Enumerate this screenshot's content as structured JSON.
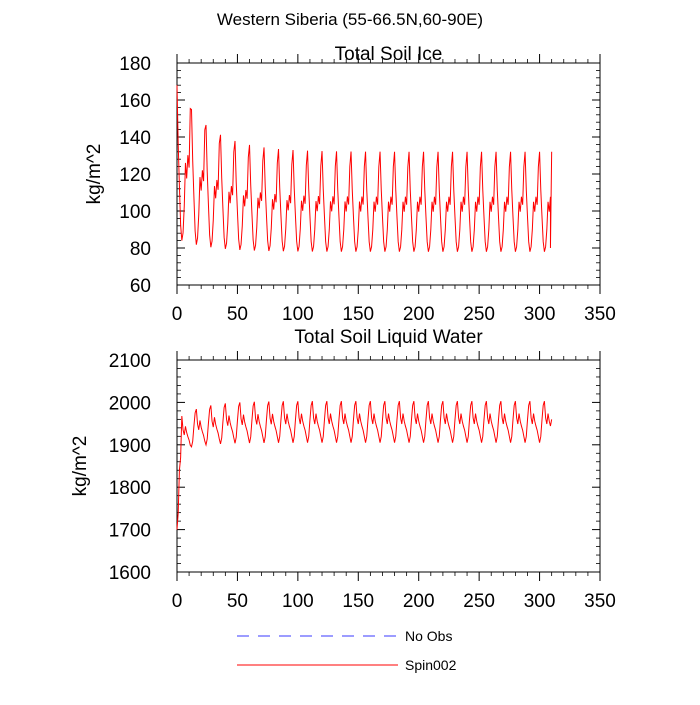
{
  "figure_title": "Western Siberia (55-66.5N,60-90E)",
  "legend": {
    "entries": [
      {
        "label": "No Obs",
        "color": "#3a3aff",
        "style": "dashed"
      },
      {
        "label": "Spin002",
        "color": "#ff0000",
        "style": "solid"
      }
    ]
  },
  "chart_data": [
    {
      "type": "line",
      "title": "Total Soil Ice",
      "xlabel": "",
      "ylabel": "kg/m^2",
      "xlim": [
        0,
        350
      ],
      "ylim": [
        60,
        180
      ],
      "xticks": [
        0,
        50,
        100,
        150,
        200,
        250,
        300,
        350
      ],
      "yticks": [
        60,
        80,
        100,
        120,
        140,
        160,
        180
      ],
      "grid": false,
      "series_color": "#ff0000",
      "series": [
        {
          "name": "Spin002",
          "cycle_months": 12,
          "x_end": 309,
          "start_value": 168,
          "description_values": {
            "peak_start": 168,
            "trough_start": 88,
            "peak_steady": 132,
            "trough_steady": 78,
            "mid_steady": 104,
            "mid_secondary": 110
          }
        }
      ]
    },
    {
      "type": "line",
      "title": "Total Soil Liquid Water",
      "xlabel": "",
      "ylabel": "kg/m^2",
      "xlim": [
        0,
        350
      ],
      "ylim": [
        1600,
        2100
      ],
      "xticks": [
        0,
        50,
        100,
        150,
        200,
        250,
        300,
        350
      ],
      "yticks": [
        1600,
        1700,
        1800,
        1900,
        2000,
        2100
      ],
      "grid": false,
      "series_color": "#ff0000",
      "series": [
        {
          "name": "Spin002",
          "cycle_months": 12,
          "x_end": 309,
          "start_value": 1700,
          "description_values": {
            "peak_steady": 2003,
            "trough_steady": 1905,
            "mid_steady": 1950,
            "early_peak": 1960,
            "early_trough": 1860
          }
        }
      ]
    }
  ]
}
